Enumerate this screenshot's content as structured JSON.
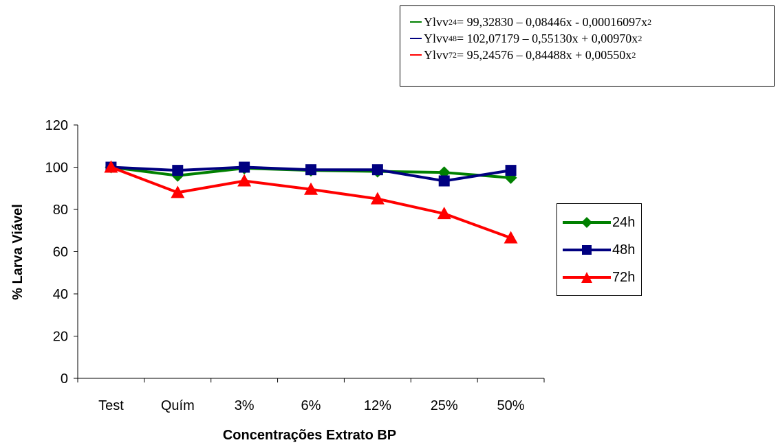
{
  "equations": [
    {
      "prefix": "Ylvv",
      "sub": "24",
      "body": " = 99,32830 – 0,08446x - 0,00016097x",
      "sup": "2",
      "color": "#008000"
    },
    {
      "prefix": "Ylvv",
      "sub": "48",
      "body": " = 102,07179 – 0,55130x + 0,00970x",
      "sup": "2",
      "color": "#000080"
    },
    {
      "prefix": "Ylvv",
      "sub": "72",
      "body": " = 95,24576 – 0,84488x + 0,00550x",
      "sup": "2",
      "color": "#ff0000"
    }
  ],
  "chart_data": {
    "type": "line",
    "categories": [
      "Test",
      "Quím",
      "3%",
      "6%",
      "12%",
      "25%",
      "50%"
    ],
    "xlabel": "Concentrações Extrato BP",
    "ylabel": "% Larva Viável",
    "ylim": [
      0,
      120
    ],
    "yticks": [
      "0",
      "20",
      "40",
      "60",
      "80",
      "100",
      "120"
    ],
    "grid": false,
    "legend_position": "right",
    "series": [
      {
        "name": "24h",
        "color": "#008000",
        "marker": "diamond",
        "values": [
          100,
          96,
          99.5,
          98.5,
          98,
          97.5,
          95
        ]
      },
      {
        "name": "48h",
        "color": "#000080",
        "marker": "square",
        "values": [
          100,
          98.5,
          100,
          98.8,
          98.8,
          93.5,
          98.5
        ]
      },
      {
        "name": "72h",
        "color": "#ff0000",
        "marker": "triangle",
        "values": [
          100,
          88,
          93.5,
          89.5,
          85,
          78,
          66.5
        ]
      }
    ]
  }
}
